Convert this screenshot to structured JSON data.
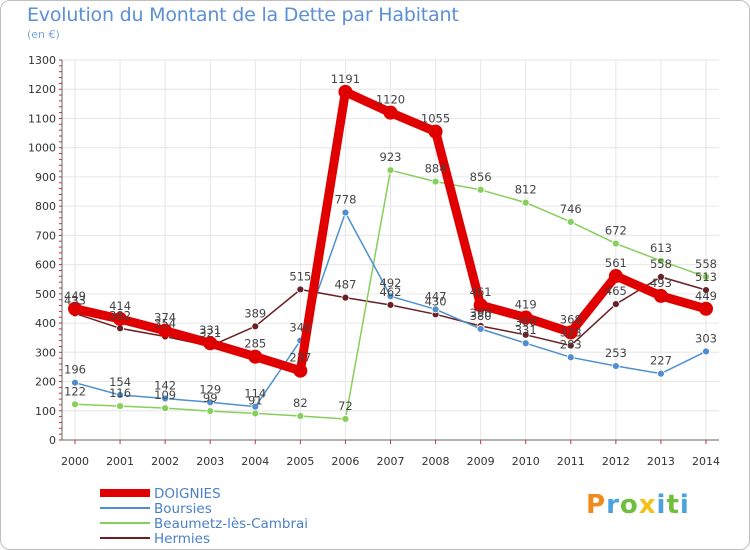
{
  "title": "Evolution du Montant de la Dette par Habitant",
  "subtitle": "(en €)",
  "logo": {
    "chars": [
      "P",
      "r",
      "o",
      "x",
      "i",
      "t",
      "i"
    ],
    "colors": [
      "#f08a1c",
      "#4aa3df",
      "#6fbf3c",
      "#f2c21a",
      "#4aa3df",
      "#6fbf3c",
      "#4aa3df"
    ]
  },
  "chart_data": {
    "type": "line",
    "title": "Evolution du Montant de la Dette par Habitant",
    "subtitle": "(en €)",
    "x": [
      "2000",
      "2001",
      "2002",
      "2003",
      "2004",
      "2005",
      "2006",
      "2007",
      "2008",
      "2009",
      "2010",
      "2011",
      "2012",
      "2013",
      "2014"
    ],
    "ylim": [
      0,
      1300
    ],
    "yticks": [
      "0",
      "100",
      "200",
      "300",
      "400",
      "500",
      "600",
      "700",
      "800",
      "900",
      "1000",
      "1100",
      "1200",
      "1300"
    ],
    "grid": true,
    "legend_position": "bottom-left",
    "series": [
      {
        "name": "DOIGNIES",
        "color": "#e00000",
        "values": [
          449,
          414,
          374,
          331,
          285,
          237,
          1191,
          1120,
          1055,
          461,
          419,
          368,
          561,
          493,
          449
        ],
        "labels": [
          "449",
          "414",
          "374",
          "331",
          "285",
          "237",
          "1191",
          "1120",
          "1055",
          "461",
          "419",
          "368",
          "561",
          "493",
          "449"
        ]
      },
      {
        "name": "Boursies",
        "color": "#4f8fce",
        "values": [
          196,
          154,
          142,
          129,
          114,
          340,
          778,
          492,
          447,
          380,
          331,
          283,
          253,
          227,
          303
        ],
        "labels": [
          "196",
          "154",
          "142",
          "129",
          "114",
          "340",
          "778",
          "492",
          "447",
          "380",
          "331",
          "283",
          "253",
          "227",
          "303"
        ]
      },
      {
        "name": "Beaumetz-lès-Cambrai",
        "color": "#86cf5a",
        "values": [
          122,
          116,
          109,
          99,
          91,
          82,
          72,
          923,
          884,
          856,
          812,
          746,
          672,
          613,
          558
        ],
        "labels": [
          "122",
          "116",
          "109",
          "99",
          "91",
          "82",
          "72",
          "923",
          "884",
          "856",
          "812",
          "746",
          "672",
          "613",
          "558"
        ]
      },
      {
        "name": "Hermies",
        "color": "#6a1f24",
        "values": [
          433,
          382,
          354,
          321,
          389,
          515,
          487,
          462,
          430,
          390,
          360,
          323,
          465,
          558,
          513
        ],
        "labels": [
          "433",
          "382",
          "354",
          "321",
          "389",
          "515",
          "487",
          "462",
          "430",
          "390",
          "360",
          "323",
          "465",
          "558",
          "513"
        ]
      }
    ]
  }
}
